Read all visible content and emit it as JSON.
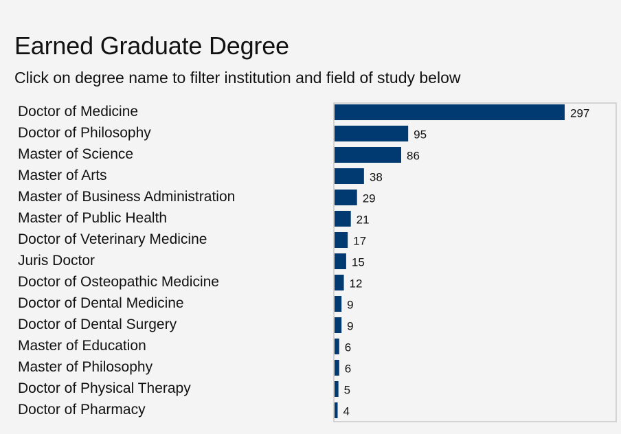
{
  "title": "Earned Graduate Degree",
  "subtitle": "Click on degree name to filter institution and field of study below",
  "colors": {
    "bar": "#003a70",
    "background": "#f4f4f4",
    "frame": "#c8c8c8"
  },
  "chart_data": {
    "type": "bar",
    "orientation": "horizontal",
    "categories": [
      "Doctor of Medicine",
      "Doctor of Philosophy",
      "Master of Science",
      "Master of Arts",
      "Master of Business Administration",
      "Master of Public Health",
      "Doctor of Veterinary Medicine",
      "Juris Doctor",
      "Doctor of Osteopathic Medicine",
      "Doctor of Dental Medicine",
      "Doctor of Dental Surgery",
      "Master of Education",
      "Master of Philosophy",
      "Doctor of Physical Therapy",
      "Doctor of Pharmacy"
    ],
    "values": [
      297,
      95,
      86,
      38,
      29,
      21,
      17,
      15,
      12,
      9,
      9,
      6,
      6,
      5,
      4
    ],
    "data_labels": [
      "297",
      "95",
      "86",
      "38",
      "29",
      "21",
      "17",
      "15",
      "12",
      "9",
      "9",
      "6",
      "6",
      "5",
      "4"
    ],
    "xlim": [
      0,
      360
    ],
    "grid": false,
    "legend": "none"
  }
}
